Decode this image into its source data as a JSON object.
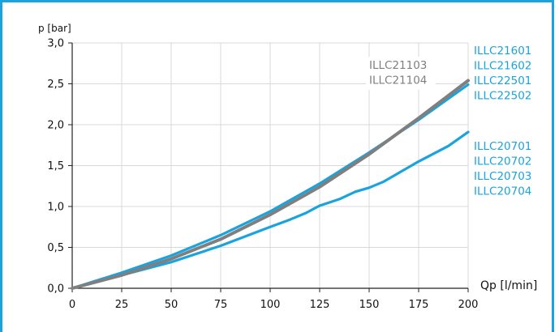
{
  "chart_data": {
    "type": "line",
    "ylabel": "p [bar]",
    "xlabel": "Qp [l/min]",
    "xlim": [
      0,
      200
    ],
    "ylim": [
      0,
      3.0
    ],
    "x_ticks": [
      "0",
      "25",
      "50",
      "75",
      "100",
      "125",
      "150",
      "175",
      "200"
    ],
    "y_ticks": [
      "0,0",
      "0,5",
      "1,0",
      "1,5",
      "2,0",
      "2,5",
      "3,0"
    ],
    "grid": true,
    "colors": {
      "gray": "#7f7f7f",
      "blue": "#1aa3dc",
      "frame": "#1aa3dc"
    },
    "series": [
      {
        "color": "gray",
        "labels": [
          "ILLC21103",
          "ILLC21104"
        ],
        "points": [
          [
            0,
            0
          ],
          [
            25,
            0.16
          ],
          [
            50,
            0.36
          ],
          [
            75,
            0.6
          ],
          [
            100,
            0.9
          ],
          [
            125,
            1.24
          ],
          [
            150,
            1.64
          ],
          [
            175,
            2.08
          ],
          [
            200,
            2.54
          ]
        ]
      },
      {
        "color": "blue",
        "labels": [
          "ILLC21601",
          "ILLC21602",
          "ILLC22501",
          "ILLC22502"
        ],
        "points": [
          [
            0,
            0
          ],
          [
            25,
            0.19
          ],
          [
            50,
            0.4
          ],
          [
            75,
            0.65
          ],
          [
            100,
            0.94
          ],
          [
            125,
            1.28
          ],
          [
            150,
            1.66
          ],
          [
            175,
            2.06
          ],
          [
            200,
            2.49
          ]
        ]
      },
      {
        "color": "blue",
        "labels": [
          "ILLC20701",
          "ILLC20702",
          "ILLC20703",
          "ILLC20704"
        ],
        "points": [
          [
            0,
            0
          ],
          [
            25,
            0.16
          ],
          [
            50,
            0.32
          ],
          [
            75,
            0.52
          ],
          [
            100,
            0.75
          ],
          [
            110,
            0.84
          ],
          [
            118,
            0.92
          ],
          [
            125,
            1.01
          ],
          [
            135,
            1.09
          ],
          [
            143,
            1.18
          ],
          [
            150,
            1.23
          ],
          [
            157,
            1.3
          ],
          [
            175,
            1.55
          ],
          [
            190,
            1.74
          ],
          [
            200,
            1.91
          ]
        ]
      }
    ]
  }
}
